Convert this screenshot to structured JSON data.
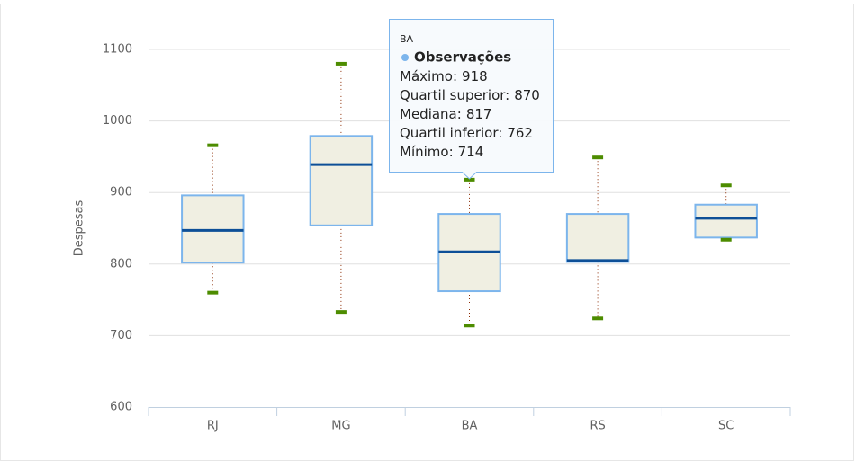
{
  "chart_data": {
    "type": "boxplot",
    "y_label": "Despesas",
    "categories": [
      "RJ",
      "MG",
      "BA",
      "RS",
      "SC"
    ],
    "series": [
      {
        "name": "Observações",
        "color": "#7cb5ec",
        "low": [
          760,
          733,
          714,
          724,
          834
        ],
        "q1": [
          802,
          854,
          762,
          803,
          837
        ],
        "median": [
          847,
          939,
          817,
          805,
          864
        ],
        "q3": [
          896,
          979,
          870,
          870,
          883
        ],
        "high": [
          966,
          1080,
          918,
          949,
          910
        ]
      }
    ],
    "ylim": [
      600,
      1100
    ],
    "yticks": [
      600,
      700,
      800,
      900,
      1000,
      1100
    ],
    "grid": true,
    "tooltip": {
      "labels": [
        "Máximo:",
        "Quartil superior:",
        "Mediana:",
        "Quartil inferior:",
        "Mínimo:"
      ]
    }
  }
}
